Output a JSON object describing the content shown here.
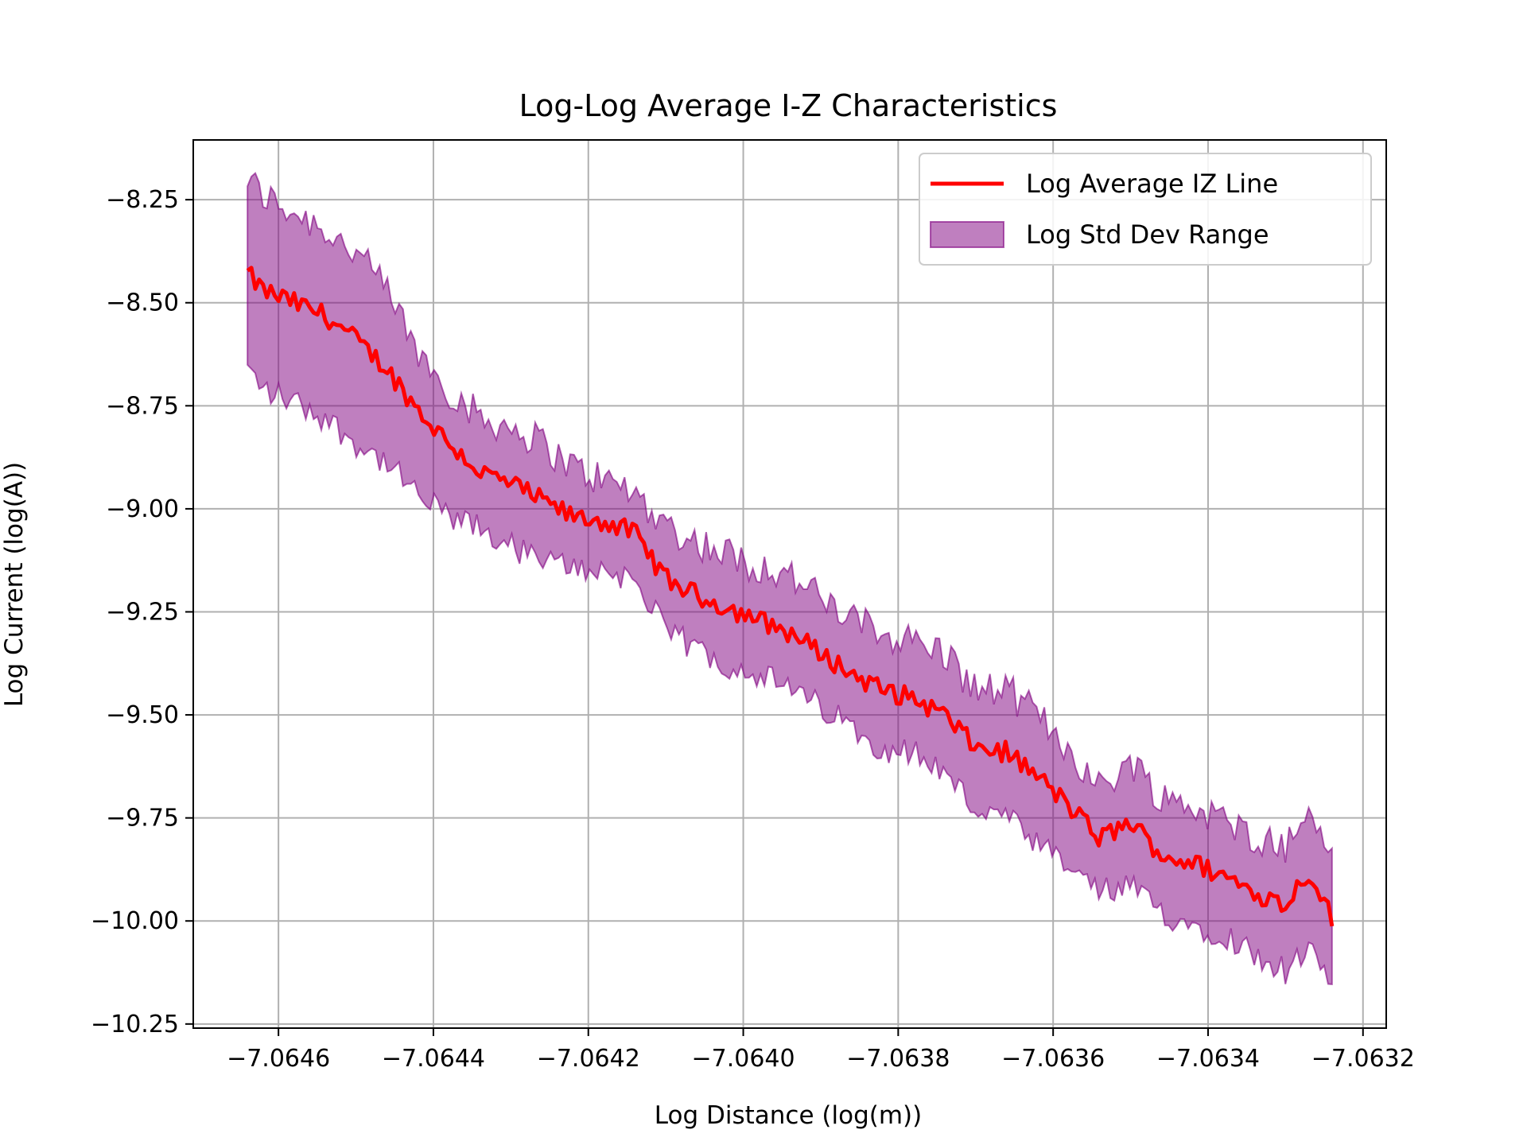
{
  "chart_data": {
    "type": "line",
    "title": "Log-Log Average I-Z Characteristics",
    "xlabel": "Log Distance (log(m))",
    "ylabel": "Log Current (log(A))",
    "xlim": [
      -7.06471,
      -7.06317
    ],
    "ylim": [
      -10.26,
      -8.105
    ],
    "xticks": [
      -7.0646,
      -7.0644,
      -7.0642,
      -7.064,
      -7.0638,
      -7.0636,
      -7.0634,
      -7.0632
    ],
    "xtick_labels": [
      "−7.0646",
      "−7.0644",
      "−7.0642",
      "−7.0640",
      "−7.0638",
      "−7.0636",
      "−7.0634",
      "−7.0632"
    ],
    "yticks": [
      -8.25,
      -8.5,
      -8.75,
      -9.0,
      -9.25,
      -9.5,
      -9.75,
      -10.0,
      -10.25
    ],
    "ytick_labels": [
      "−8.25",
      "−8.50",
      "−8.75",
      "−9.00",
      "−9.25",
      "−9.50",
      "−9.75",
      "−10.00",
      "−10.25"
    ],
    "grid": true,
    "legend_position": "top-right",
    "x_range": [
      -7.06464,
      -7.06324
    ],
    "series": [
      {
        "name": "Log Average IZ Line",
        "color": "#ff0000",
        "x": [
          -7.06464,
          -7.06462,
          -7.06458,
          -7.06454,
          -7.0645,
          -7.06446,
          -7.06442,
          -7.06438,
          -7.06434,
          -7.0643,
          -7.06426,
          -7.06422,
          -7.06418,
          -7.06414,
          -7.0641,
          -7.06406,
          -7.06402,
          -7.06398,
          -7.06394,
          -7.0639,
          -7.06386,
          -7.06382,
          -7.06378,
          -7.06374,
          -7.0637,
          -7.06366,
          -7.06362,
          -7.06358,
          -7.06354,
          -7.0635,
          -7.06346,
          -7.06342,
          -7.06338,
          -7.06334,
          -7.0633,
          -7.06327,
          -7.06324
        ],
        "y": [
          -8.43,
          -8.47,
          -8.5,
          -8.53,
          -8.59,
          -8.66,
          -8.76,
          -8.84,
          -8.91,
          -8.94,
          -8.98,
          -9.02,
          -9.03,
          -9.06,
          -9.17,
          -9.21,
          -9.24,
          -9.27,
          -9.3,
          -9.35,
          -9.4,
          -9.44,
          -9.46,
          -9.5,
          -9.58,
          -9.59,
          -9.65,
          -9.72,
          -9.8,
          -9.76,
          -9.84,
          -9.86,
          -9.89,
          -9.93,
          -9.96,
          -9.88,
          -9.99
        ]
      },
      {
        "name": "Log Std Dev Range",
        "color": "#800080",
        "x": [
          -7.06464,
          -7.06462,
          -7.06458,
          -7.06454,
          -7.0645,
          -7.06446,
          -7.06442,
          -7.06438,
          -7.06434,
          -7.0643,
          -7.06426,
          -7.06422,
          -7.06418,
          -7.06414,
          -7.0641,
          -7.06406,
          -7.06402,
          -7.06398,
          -7.06394,
          -7.0639,
          -7.06386,
          -7.06382,
          -7.06378,
          -7.06374,
          -7.0637,
          -7.06366,
          -7.06362,
          -7.06358,
          -7.06354,
          -7.0635,
          -7.06346,
          -7.06342,
          -7.06338,
          -7.06334,
          -7.0633,
          -7.06327,
          -7.06324
        ],
        "lower": [
          -8.66,
          -8.71,
          -8.74,
          -8.78,
          -8.84,
          -8.89,
          -8.97,
          -9.02,
          -9.05,
          -9.09,
          -9.13,
          -9.14,
          -9.15,
          -9.17,
          -9.3,
          -9.34,
          -9.38,
          -9.4,
          -9.44,
          -9.48,
          -9.53,
          -9.58,
          -9.59,
          -9.64,
          -9.73,
          -9.75,
          -9.82,
          -9.87,
          -9.93,
          -9.92,
          -9.98,
          -10.01,
          -10.03,
          -10.08,
          -10.12,
          -10.08,
          -10.14
        ],
        "upper": [
          -8.2,
          -8.24,
          -8.28,
          -8.32,
          -8.38,
          -8.47,
          -8.62,
          -8.71,
          -8.78,
          -8.8,
          -8.84,
          -8.9,
          -8.93,
          -8.96,
          -9.04,
          -9.08,
          -9.11,
          -9.14,
          -9.16,
          -9.22,
          -9.27,
          -9.3,
          -9.32,
          -9.35,
          -9.44,
          -9.44,
          -9.5,
          -9.58,
          -9.68,
          -9.61,
          -9.7,
          -9.72,
          -9.76,
          -9.79,
          -9.82,
          -9.74,
          -9.82
        ]
      }
    ]
  }
}
